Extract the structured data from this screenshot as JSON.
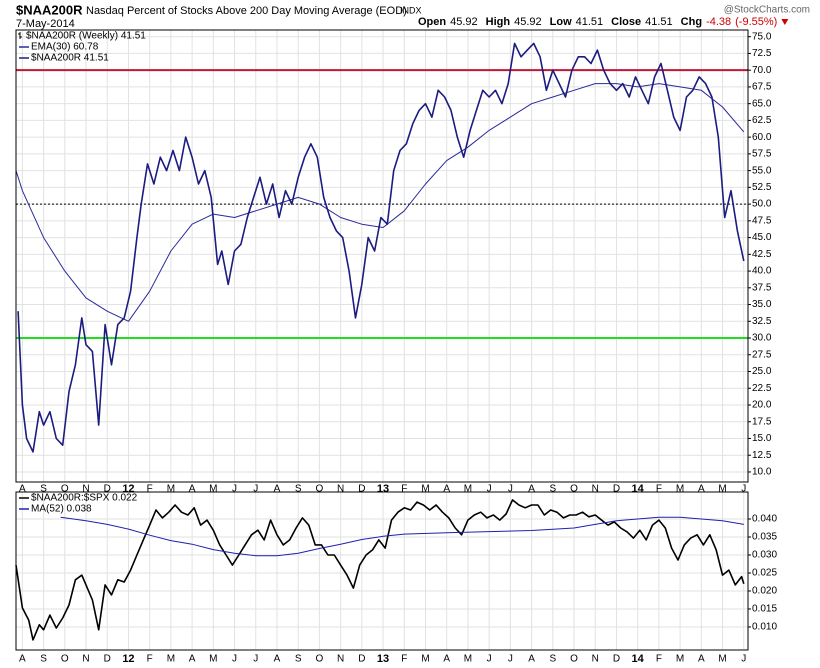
{
  "header": {
    "symbol": "$NAA200R",
    "name": "Nasdaq Percent of Stocks Above 200 Day Moving Average (EOD)",
    "exchange": "INDX",
    "date": "7-May-2014",
    "watermark": "@StockCharts.com",
    "quote": [
      {
        "label": "Open",
        "value": 45.92
      },
      {
        "label": "High",
        "value": 45.92
      },
      {
        "label": "Low",
        "value": 41.51
      },
      {
        "label": "Close",
        "value": 41.51
      }
    ],
    "change": {
      "label": "Chg",
      "value": -4.38,
      "pct": {
        "value": -9.55,
        "label": "(-9.55%)"
      }
    }
  },
  "chart_data": [
    {
      "type": "line",
      "legend_title": "$NAA200R (Weekly) 41.51",
      "grid": true,
      "xlim": [
        -0.3,
        34.2
      ],
      "xticks": [
        {
          "value": 0,
          "label": "A"
        },
        {
          "value": 1,
          "label": "S"
        },
        {
          "value": 2,
          "label": "O"
        },
        {
          "value": 3,
          "label": "N"
        },
        {
          "value": 4,
          "label": "D"
        },
        {
          "value": 5,
          "label": "12"
        },
        {
          "value": 6,
          "label": "F"
        },
        {
          "value": 7,
          "label": "M"
        },
        {
          "value": 8,
          "label": "A"
        },
        {
          "value": 9,
          "label": "M"
        },
        {
          "value": 10,
          "label": "J"
        },
        {
          "value": 11,
          "label": "J"
        },
        {
          "value": 12,
          "label": "A"
        },
        {
          "value": 13,
          "label": "S"
        },
        {
          "value": 14,
          "label": "O"
        },
        {
          "value": 15,
          "label": "N"
        },
        {
          "value": 16,
          "label": "D"
        },
        {
          "value": 17,
          "label": "13"
        },
        {
          "value": 18,
          "label": "F"
        },
        {
          "value": 19,
          "label": "M"
        },
        {
          "value": 20,
          "label": "A"
        },
        {
          "value": 21,
          "label": "M"
        },
        {
          "value": 22,
          "label": "J"
        },
        {
          "value": 23,
          "label": "J"
        },
        {
          "value": 24,
          "label": "A"
        },
        {
          "value": 25,
          "label": "S"
        },
        {
          "value": 26,
          "label": "O"
        },
        {
          "value": 27,
          "label": "N"
        },
        {
          "value": 28,
          "label": "D"
        },
        {
          "value": 29,
          "label": "14"
        },
        {
          "value": 30,
          "label": "F"
        },
        {
          "value": 31,
          "label": "M"
        },
        {
          "value": 32,
          "label": "A"
        },
        {
          "value": 33,
          "label": "M"
        },
        {
          "value": 34,
          "label": "J"
        }
      ],
      "ylim": [
        8.5,
        76
      ],
      "yticks": [
        {
          "value": 10,
          "label": "10.0"
        },
        {
          "value": 12.5,
          "label": "12.5"
        },
        {
          "value": 15,
          "label": "15.0"
        },
        {
          "value": 17.5,
          "label": "17.5"
        },
        {
          "value": 20,
          "label": "20.0"
        },
        {
          "value": 22.5,
          "label": "22.5"
        },
        {
          "value": 25,
          "label": "25.0"
        },
        {
          "value": 27.5,
          "label": "27.5"
        },
        {
          "value": 30,
          "label": "30.0"
        },
        {
          "value": 32.5,
          "label": "32.5"
        },
        {
          "value": 35,
          "label": "35.0"
        },
        {
          "value": 37.5,
          "label": "37.5"
        },
        {
          "value": 40,
          "label": "40.0"
        },
        {
          "value": 42.5,
          "label": "42.5"
        },
        {
          "value": 45,
          "label": "45.0"
        },
        {
          "value": 47.5,
          "label": "47.5"
        },
        {
          "value": 50,
          "label": "50.0"
        },
        {
          "value": 52.5,
          "label": "52.5"
        },
        {
          "value": 55,
          "label": "55.0"
        },
        {
          "value": 57.5,
          "label": "57.5"
        },
        {
          "value": 60,
          "label": "60.0"
        },
        {
          "value": 62.5,
          "label": "62.5"
        },
        {
          "value": 65,
          "label": "65.0"
        },
        {
          "value": 67.5,
          "label": "67.5"
        },
        {
          "value": 70,
          "label": "70.0"
        },
        {
          "value": 72.5,
          "label": "72.5"
        },
        {
          "value": 75,
          "label": "75.0"
        }
      ],
      "reference_lines": [
        {
          "value": 70,
          "color": "#c0163a",
          "style": "solid"
        },
        {
          "value": 30,
          "color": "#22dd22",
          "style": "solid"
        },
        {
          "value": 50,
          "color": "#000000",
          "style": "dotted"
        }
      ],
      "series": [
        {
          "name": "EMA(30) 60.78",
          "color": "#2a2a9a",
          "width": 1,
          "x": [
            -0.3,
            0,
            1,
            2,
            3,
            4,
            5,
            6,
            7,
            8,
            9,
            10,
            11,
            12,
            13,
            14,
            15,
            16,
            17,
            18,
            19,
            20,
            21,
            22,
            23,
            24,
            25,
            26,
            27,
            28,
            29,
            30,
            31,
            32,
            33,
            34
          ],
          "values": [
            55,
            52,
            45,
            40,
            36,
            34,
            32.5,
            37,
            43,
            47,
            48.5,
            48,
            49,
            50,
            51,
            50,
            48,
            47,
            46.5,
            49,
            53,
            56.5,
            58.5,
            61,
            63,
            65,
            66,
            67,
            68,
            68,
            67.5,
            68,
            67.5,
            67,
            64.5,
            60.78
          ]
        },
        {
          "name": "$NAA200R 41.51",
          "color": "#1c1c80",
          "width": 1.6,
          "x": [
            -0.2,
            0,
            0.2,
            0.5,
            0.8,
            1.0,
            1.3,
            1.6,
            1.9,
            2.2,
            2.5,
            2.8,
            3.0,
            3.3,
            3.6,
            3.9,
            4.2,
            4.5,
            4.8,
            5.1,
            5.4,
            5.6,
            5.9,
            6.2,
            6.5,
            6.8,
            7.1,
            7.4,
            7.7,
            8.0,
            8.3,
            8.6,
            8.9,
            9.2,
            9.4,
            9.7,
            10,
            10.3,
            10.6,
            10.9,
            11.2,
            11.5,
            11.8,
            12.1,
            12.4,
            12.7,
            13,
            13.3,
            13.6,
            13.9,
            14.2,
            14.5,
            14.8,
            15.1,
            15.4,
            15.7,
            16,
            16.3,
            16.6,
            16.9,
            17.2,
            17.5,
            17.8,
            18.1,
            18.4,
            18.7,
            19,
            19.3,
            19.6,
            19.9,
            20.2,
            20.5,
            20.8,
            21.1,
            21.4,
            21.7,
            22,
            22.3,
            22.6,
            22.9,
            23.2,
            23.5,
            23.8,
            24.1,
            24.4,
            24.7,
            25,
            25.3,
            25.6,
            25.9,
            26.2,
            26.5,
            26.8,
            27.1,
            27.4,
            27.7,
            28,
            28.3,
            28.6,
            28.9,
            29.2,
            29.5,
            29.8,
            30.1,
            30.4,
            30.7,
            31,
            31.3,
            31.6,
            31.9,
            32.2,
            32.5,
            32.8,
            33.1,
            33.4,
            33.7,
            34
          ],
          "values": [
            34,
            20,
            15,
            13,
            19,
            17,
            19,
            15,
            14,
            22,
            26,
            33,
            29,
            28,
            17,
            32,
            26,
            32,
            33,
            37,
            45,
            50,
            56,
            53,
            57,
            55,
            58,
            55,
            60,
            57,
            53,
            55,
            51,
            41,
            43,
            38,
            43,
            44,
            48,
            51,
            54,
            50,
            53,
            48,
            52,
            50,
            54,
            57,
            59,
            57,
            51,
            48,
            46,
            45,
            40,
            33,
            38,
            45,
            43,
            48,
            47,
            55,
            58,
            59,
            62,
            64,
            65,
            63,
            67,
            66,
            64,
            60,
            57,
            61,
            64,
            67,
            66,
            67,
            65,
            68,
            74,
            72,
            73,
            74,
            72,
            67,
            70,
            68,
            66,
            70,
            72,
            72,
            71,
            73,
            70,
            68,
            67,
            68,
            66,
            69,
            67,
            65,
            69,
            71,
            67,
            63,
            61,
            66,
            67,
            69,
            68,
            66,
            60,
            48,
            52,
            46,
            41.51
          ]
        }
      ]
    },
    {
      "type": "line",
      "grid": true,
      "xlim": [
        -0.3,
        34.2
      ],
      "xticks": [
        {
          "value": 0,
          "label": "A"
        },
        {
          "value": 1,
          "label": "S"
        },
        {
          "value": 2,
          "label": "O"
        },
        {
          "value": 3,
          "label": "N"
        },
        {
          "value": 4,
          "label": "D"
        },
        {
          "value": 5,
          "label": "12"
        },
        {
          "value": 6,
          "label": "F"
        },
        {
          "value": 7,
          "label": "M"
        },
        {
          "value": 8,
          "label": "A"
        },
        {
          "value": 9,
          "label": "M"
        },
        {
          "value": 10,
          "label": "J"
        },
        {
          "value": 11,
          "label": "J"
        },
        {
          "value": 12,
          "label": "A"
        },
        {
          "value": 13,
          "label": "S"
        },
        {
          "value": 14,
          "label": "O"
        },
        {
          "value": 15,
          "label": "N"
        },
        {
          "value": 16,
          "label": "D"
        },
        {
          "value": 17,
          "label": "13"
        },
        {
          "value": 18,
          "label": "F"
        },
        {
          "value": 19,
          "label": "M"
        },
        {
          "value": 20,
          "label": "A"
        },
        {
          "value": 21,
          "label": "M"
        },
        {
          "value": 22,
          "label": "J"
        },
        {
          "value": 23,
          "label": "J"
        },
        {
          "value": 24,
          "label": "A"
        },
        {
          "value": 25,
          "label": "S"
        },
        {
          "value": 26,
          "label": "O"
        },
        {
          "value": 27,
          "label": "N"
        },
        {
          "value": 28,
          "label": "D"
        },
        {
          "value": 29,
          "label": "14"
        },
        {
          "value": 30,
          "label": "F"
        },
        {
          "value": 31,
          "label": "M"
        },
        {
          "value": 32,
          "label": "A"
        },
        {
          "value": 33,
          "label": "M"
        },
        {
          "value": 34,
          "label": "J"
        }
      ],
      "ylim": [
        0.0036,
        0.0475
      ],
      "yticks": [
        {
          "value": 0.01,
          "label": "0.010"
        },
        {
          "value": 0.015,
          "label": "0.015"
        },
        {
          "value": 0.02,
          "label": "0.020"
        },
        {
          "value": 0.025,
          "label": "0.025"
        },
        {
          "value": 0.03,
          "label": "0.030"
        },
        {
          "value": 0.035,
          "label": "0.035"
        },
        {
          "value": 0.04,
          "label": "0.040"
        }
      ],
      "series": [
        {
          "name": "$NAA200R:$SPX 0.022",
          "color": "#000000",
          "width": 1.6,
          "x": [
            -0.3,
            0,
            0.3,
            0.5,
            0.8,
            1,
            1.3,
            1.6,
            1.9,
            2.2,
            2.5,
            2.8,
            3,
            3.3,
            3.6,
            3.9,
            4.2,
            4.5,
            4.8,
            5.1,
            5.4,
            5.7,
            6,
            6.3,
            6.6,
            6.9,
            7.2,
            7.5,
            7.8,
            8.1,
            8.4,
            8.7,
            9,
            9.3,
            9.6,
            9.9,
            10.2,
            10.5,
            10.8,
            11.1,
            11.4,
            11.7,
            12,
            12.3,
            12.6,
            12.9,
            13.2,
            13.5,
            13.8,
            14.1,
            14.4,
            14.7,
            15,
            15.3,
            15.6,
            15.9,
            16.2,
            16.5,
            16.8,
            17.1,
            17.4,
            17.7,
            18,
            18.3,
            18.6,
            18.9,
            19.2,
            19.5,
            19.8,
            20.1,
            20.4,
            20.7,
            21,
            21.3,
            21.6,
            21.9,
            22.2,
            22.5,
            22.8,
            23.1,
            23.4,
            23.7,
            24,
            24.3,
            24.6,
            24.9,
            25.2,
            25.5,
            25.8,
            26.1,
            26.4,
            26.7,
            27,
            27.3,
            27.6,
            27.9,
            28.2,
            28.5,
            28.8,
            29.1,
            29.4,
            29.7,
            30,
            30.3,
            30.6,
            30.9,
            31.2,
            31.5,
            31.8,
            32.1,
            32.4,
            32.7,
            33,
            33.3,
            33.6,
            33.9,
            34
          ],
          "values": [
            0.0272,
            0.0153,
            0.0119,
            0.0064,
            0.0106,
            0.0092,
            0.0133,
            0.0097,
            0.0125,
            0.0161,
            0.0231,
            0.0244,
            0.0217,
            0.0175,
            0.0092,
            0.0217,
            0.0189,
            0.0231,
            0.0225,
            0.0258,
            0.03,
            0.0342,
            0.0383,
            0.0425,
            0.0403,
            0.0419,
            0.0439,
            0.0419,
            0.0411,
            0.0431,
            0.0383,
            0.0397,
            0.0369,
            0.0328,
            0.03,
            0.0272,
            0.03,
            0.0328,
            0.0356,
            0.0369,
            0.0342,
            0.0397,
            0.0356,
            0.0328,
            0.0342,
            0.0375,
            0.0403,
            0.0383,
            0.0328,
            0.0328,
            0.03,
            0.03,
            0.0272,
            0.0244,
            0.0208,
            0.0272,
            0.03,
            0.0314,
            0.0342,
            0.0319,
            0.0397,
            0.0419,
            0.0431,
            0.0425,
            0.0447,
            0.0439,
            0.0425,
            0.0439,
            0.0419,
            0.0403,
            0.0375,
            0.0356,
            0.0397,
            0.0411,
            0.0419,
            0.0403,
            0.0411,
            0.0397,
            0.0414,
            0.0453,
            0.0439,
            0.0431,
            0.0439,
            0.0439,
            0.0411,
            0.0425,
            0.0419,
            0.0403,
            0.0411,
            0.0411,
            0.0419,
            0.0406,
            0.0411,
            0.0397,
            0.0383,
            0.0392,
            0.0375,
            0.0364,
            0.0347,
            0.0369,
            0.0342,
            0.0383,
            0.0397,
            0.0375,
            0.0319,
            0.0286,
            0.0328,
            0.0347,
            0.0356,
            0.0328,
            0.0356,
            0.0314,
            0.0244,
            0.0258,
            0.0217,
            0.024,
            0.022
          ]
        },
        {
          "name": "MA(52) 0.038",
          "color": "#2020b0",
          "width": 1,
          "x": [
            1.8,
            3,
            4,
            5,
            6,
            7,
            8,
            9,
            10,
            11,
            12,
            13,
            14,
            15,
            16,
            17,
            18,
            20,
            22,
            24,
            26,
            27,
            28,
            29,
            30,
            31,
            32,
            33,
            34
          ],
          "values": [
            0.0405,
            0.0395,
            0.0385,
            0.0372,
            0.0355,
            0.034,
            0.033,
            0.0315,
            0.0305,
            0.0298,
            0.0298,
            0.0305,
            0.0318,
            0.033,
            0.0343,
            0.0352,
            0.0358,
            0.0362,
            0.0365,
            0.0368,
            0.0375,
            0.0385,
            0.0395,
            0.04,
            0.0405,
            0.0405,
            0.04,
            0.0395,
            0.0385
          ]
        }
      ]
    }
  ]
}
